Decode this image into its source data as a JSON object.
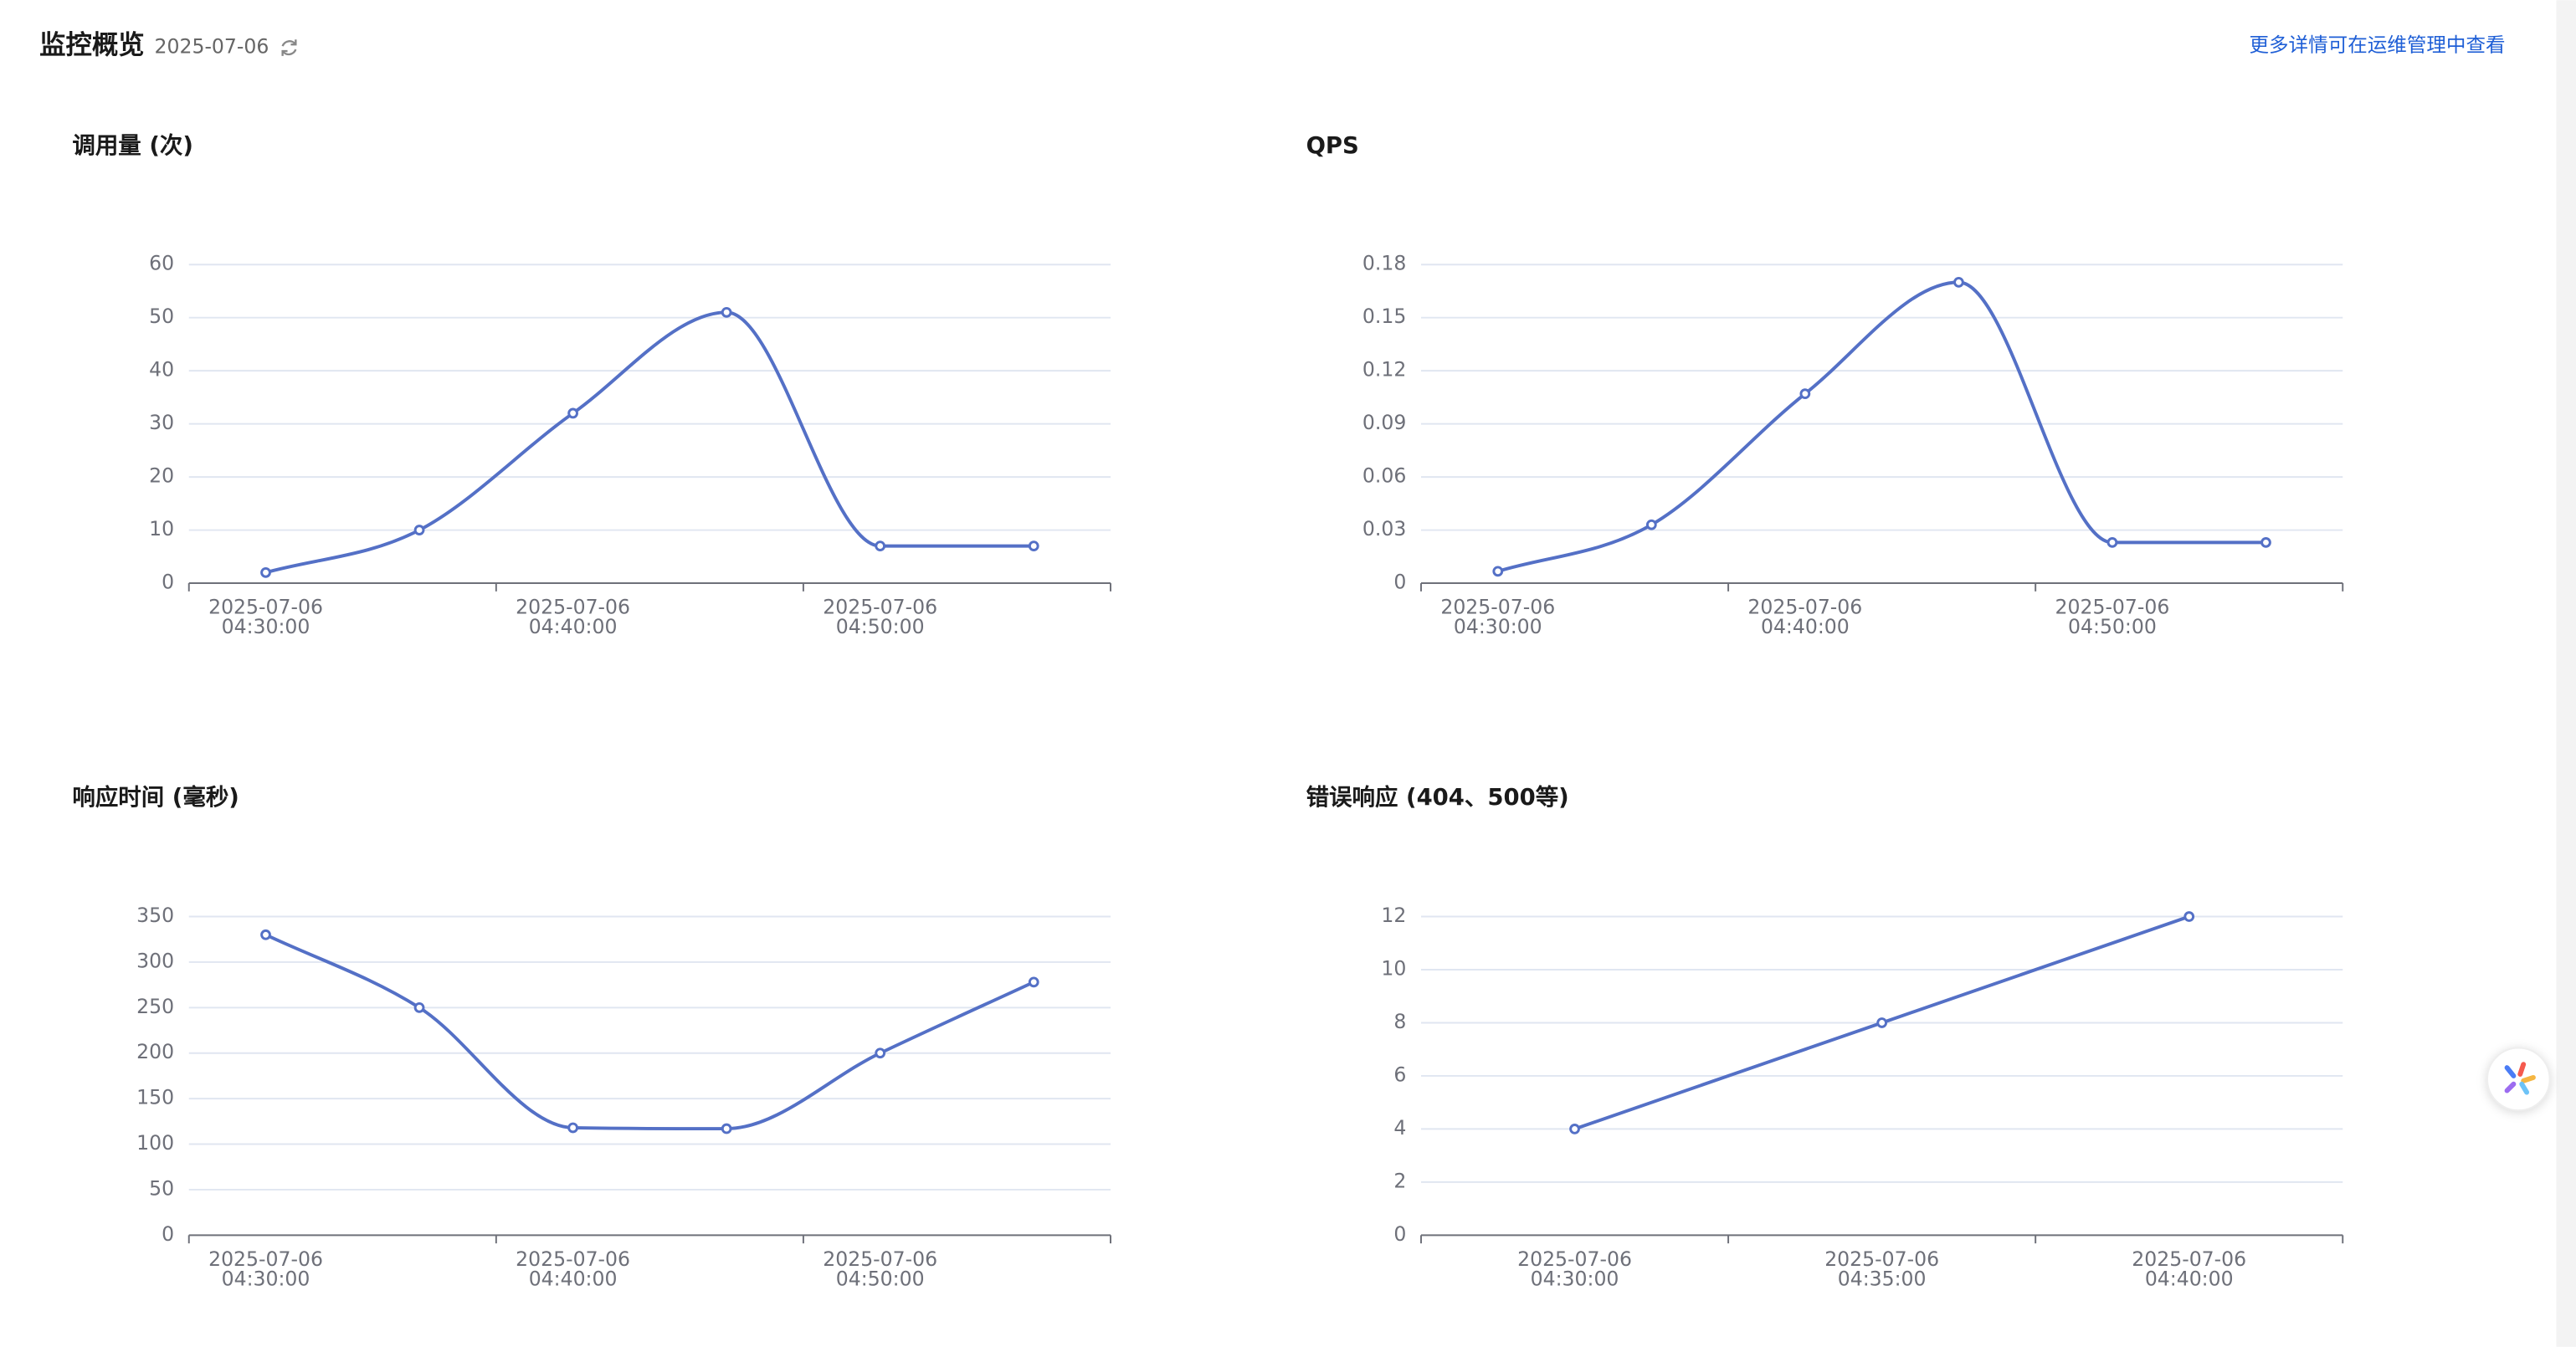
{
  "header": {
    "title": "监控概览",
    "date": "2025-07-06",
    "link": "更多详情可在运维管理中查看"
  },
  "chart_data": [
    {
      "type": "line",
      "title": "调用量 (次)",
      "smooth": true,
      "color": "#5470c6",
      "grid": true,
      "categories": [
        "2025-07-06 04:30:00",
        null,
        "2025-07-06 04:40:00",
        null,
        "2025-07-06 04:50:00",
        null
      ],
      "values": [
        2,
        10,
        32,
        51,
        7,
        7
      ],
      "ylim": [
        0,
        60
      ],
      "yticks": [
        0,
        10,
        20,
        30,
        40,
        50,
        60
      ]
    },
    {
      "type": "line",
      "title": "QPS",
      "smooth": true,
      "color": "#5470c6",
      "grid": true,
      "categories": [
        "2025-07-06 04:30:00",
        null,
        "2025-07-06 04:40:00",
        null,
        "2025-07-06 04:50:00",
        null
      ],
      "values": [
        0.0067,
        0.033,
        0.107,
        0.17,
        0.023,
        0.023
      ],
      "ylim": [
        0,
        0.18
      ],
      "yticks": [
        0,
        0.03,
        0.06,
        0.09,
        0.12,
        0.15,
        0.18
      ]
    },
    {
      "type": "line",
      "title": "响应时间 (毫秒)",
      "smooth": true,
      "color": "#5470c6",
      "grid": true,
      "categories": [
        "2025-07-06 04:30:00",
        null,
        "2025-07-06 04:40:00",
        null,
        "2025-07-06 04:50:00",
        null
      ],
      "values": [
        330,
        250,
        118,
        117,
        200,
        278
      ],
      "ylim": [
        0,
        350
      ],
      "yticks": [
        0,
        50,
        100,
        150,
        200,
        250,
        300,
        350
      ]
    },
    {
      "type": "line",
      "title": "错误响应 (404、500等)",
      "smooth": false,
      "color": "#5470c6",
      "grid": true,
      "categories": [
        "2025-07-06 04:30:00",
        "2025-07-06 04:35:00",
        "2025-07-06 04:40:00"
      ],
      "values": [
        4,
        8,
        12
      ],
      "ylim": [
        0,
        12
      ],
      "yticks": [
        0,
        2,
        4,
        6,
        8,
        10,
        12
      ]
    }
  ]
}
